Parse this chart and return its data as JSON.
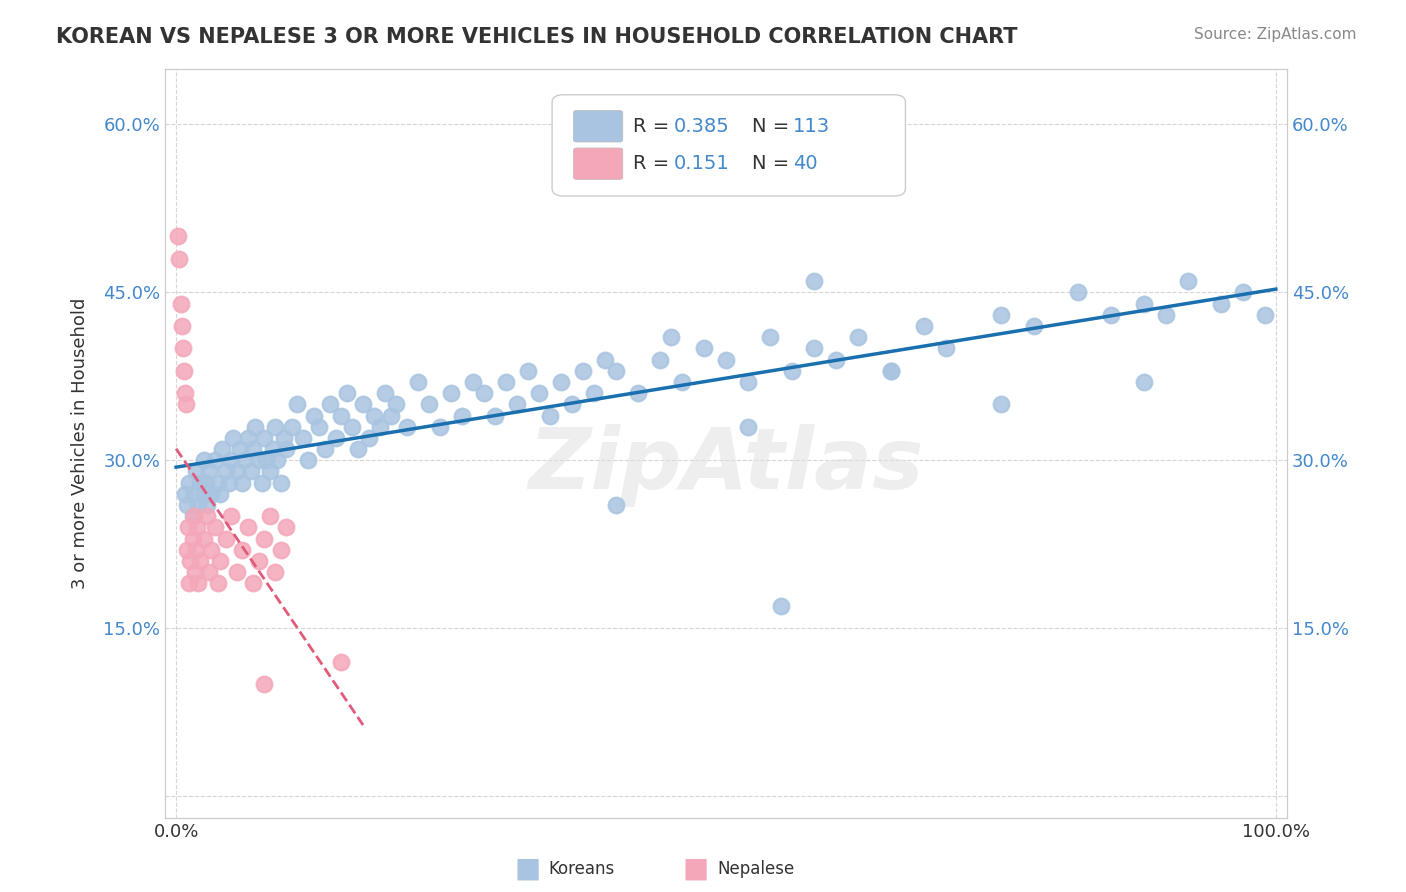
{
  "title": "KOREAN VS NEPALESE 3 OR MORE VEHICLES IN HOUSEHOLD CORRELATION CHART",
  "source_text": "Source: ZipAtlas.com",
  "ylabel": "3 or more Vehicles in Household",
  "xlim": [
    0.0,
    1.0
  ],
  "ylim": [
    -0.02,
    0.65
  ],
  "ytick_vals": [
    0.0,
    0.15,
    0.3,
    0.45,
    0.6
  ],
  "ytick_labels": [
    "",
    "15.0%",
    "30.0%",
    "45.0%",
    "60.0%"
  ],
  "korean_R": 0.385,
  "korean_N": 113,
  "nepalese_R": 0.151,
  "nepalese_N": 40,
  "korean_color": "#a8c4e0",
  "nepalese_color": "#f4a7b9",
  "korean_line_color": "#1a6faf",
  "nepalese_line_color": "#e05a7a",
  "watermark": "ZipAtlas",
  "background_color": "#ffffff",
  "korean_x": [
    0.008,
    0.01,
    0.012,
    0.015,
    0.016,
    0.018,
    0.02,
    0.022,
    0.025,
    0.025,
    0.027,
    0.028,
    0.03,
    0.032,
    0.035,
    0.038,
    0.04,
    0.042,
    0.045,
    0.048,
    0.05,
    0.052,
    0.055,
    0.058,
    0.06,
    0.062,
    0.065,
    0.068,
    0.07,
    0.072,
    0.075,
    0.078,
    0.08,
    0.082,
    0.085,
    0.088,
    0.09,
    0.092,
    0.095,
    0.098,
    0.1,
    0.105,
    0.11,
    0.115,
    0.12,
    0.125,
    0.13,
    0.135,
    0.14,
    0.145,
    0.15,
    0.155,
    0.16,
    0.165,
    0.17,
    0.175,
    0.18,
    0.185,
    0.19,
    0.195,
    0.2,
    0.21,
    0.22,
    0.23,
    0.24,
    0.25,
    0.26,
    0.27,
    0.28,
    0.29,
    0.3,
    0.31,
    0.32,
    0.33,
    0.34,
    0.35,
    0.36,
    0.37,
    0.38,
    0.39,
    0.4,
    0.42,
    0.44,
    0.46,
    0.48,
    0.5,
    0.52,
    0.54,
    0.56,
    0.58,
    0.6,
    0.62,
    0.65,
    0.68,
    0.7,
    0.75,
    0.78,
    0.82,
    0.85,
    0.88,
    0.9,
    0.92,
    0.95,
    0.97,
    0.99,
    0.4,
    0.55,
    0.65,
    0.75,
    0.88,
    0.45,
    0.52,
    0.58
  ],
  "korean_y": [
    0.27,
    0.26,
    0.28,
    0.25,
    0.27,
    0.29,
    0.26,
    0.28,
    0.27,
    0.3,
    0.28,
    0.26,
    0.29,
    0.27,
    0.3,
    0.28,
    0.27,
    0.31,
    0.29,
    0.28,
    0.3,
    0.32,
    0.29,
    0.31,
    0.28,
    0.3,
    0.32,
    0.29,
    0.31,
    0.33,
    0.3,
    0.28,
    0.32,
    0.3,
    0.29,
    0.31,
    0.33,
    0.3,
    0.28,
    0.32,
    0.31,
    0.33,
    0.35,
    0.32,
    0.3,
    0.34,
    0.33,
    0.31,
    0.35,
    0.32,
    0.34,
    0.36,
    0.33,
    0.31,
    0.35,
    0.32,
    0.34,
    0.33,
    0.36,
    0.34,
    0.35,
    0.33,
    0.37,
    0.35,
    0.33,
    0.36,
    0.34,
    0.37,
    0.36,
    0.34,
    0.37,
    0.35,
    0.38,
    0.36,
    0.34,
    0.37,
    0.35,
    0.38,
    0.36,
    0.39,
    0.38,
    0.36,
    0.39,
    0.37,
    0.4,
    0.39,
    0.37,
    0.41,
    0.38,
    0.4,
    0.39,
    0.41,
    0.38,
    0.42,
    0.4,
    0.43,
    0.42,
    0.45,
    0.43,
    0.44,
    0.43,
    0.46,
    0.44,
    0.45,
    0.43,
    0.26,
    0.17,
    0.38,
    0.35,
    0.37,
    0.41,
    0.33,
    0.46
  ],
  "nepalese_x": [
    0.002,
    0.003,
    0.004,
    0.005,
    0.006,
    0.007,
    0.008,
    0.009,
    0.01,
    0.011,
    0.012,
    0.013,
    0.015,
    0.016,
    0.017,
    0.018,
    0.019,
    0.02,
    0.022,
    0.025,
    0.028,
    0.03,
    0.032,
    0.035,
    0.038,
    0.04,
    0.045,
    0.05,
    0.055,
    0.06,
    0.065,
    0.07,
    0.075,
    0.08,
    0.085,
    0.09,
    0.095,
    0.1,
    0.15,
    0.08
  ],
  "nepalese_y": [
    0.5,
    0.48,
    0.44,
    0.42,
    0.4,
    0.38,
    0.36,
    0.35,
    0.22,
    0.24,
    0.19,
    0.21,
    0.23,
    0.25,
    0.2,
    0.22,
    0.24,
    0.19,
    0.21,
    0.23,
    0.25,
    0.2,
    0.22,
    0.24,
    0.19,
    0.21,
    0.23,
    0.25,
    0.2,
    0.22,
    0.24,
    0.19,
    0.21,
    0.23,
    0.25,
    0.2,
    0.22,
    0.24,
    0.12,
    0.1
  ],
  "legend_label_korean": "Koreans",
  "legend_label_nepalese": "Nepalese"
}
